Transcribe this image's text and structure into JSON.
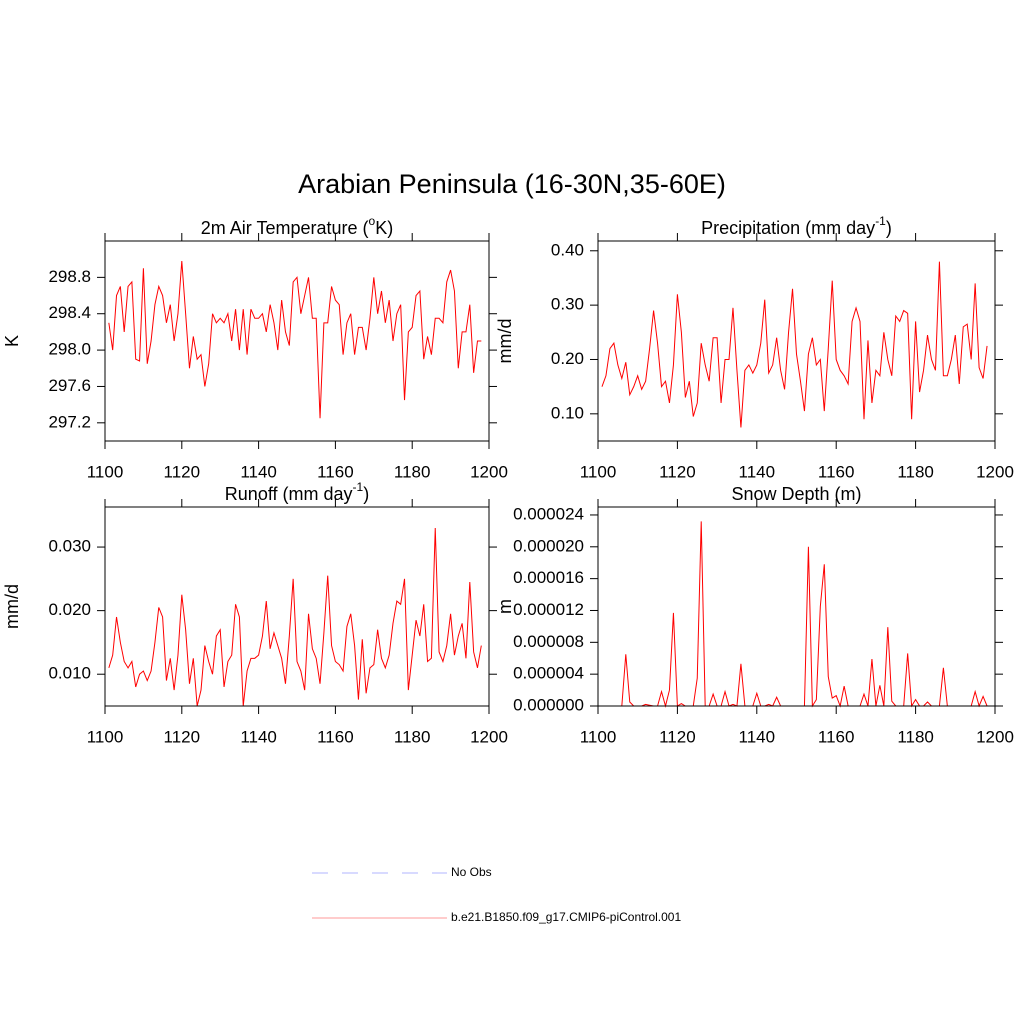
{
  "title": "Arabian Peninsula (16-30N,35-60E)",
  "chart_data": [
    {
      "type": "line",
      "title": [
        "2m Air Temperature (",
        "o",
        "K)"
      ],
      "ylabel": "K",
      "x": [
        1101,
        1102,
        1103,
        1104,
        1105,
        1106,
        1107,
        1108,
        1109,
        1110,
        1111,
        1112,
        1113,
        1114,
        1115,
        1116,
        1117,
        1118,
        1119,
        1120,
        1121,
        1122,
        1123,
        1124,
        1125,
        1126,
        1127,
        1128,
        1129,
        1130,
        1131,
        1132,
        1133,
        1134,
        1135,
        1136,
        1137,
        1138,
        1139,
        1140,
        1141,
        1142,
        1143,
        1144,
        1145,
        1146,
        1147,
        1148,
        1149,
        1150,
        1151,
        1152,
        1153,
        1154,
        1155,
        1156,
        1157,
        1158,
        1159,
        1160,
        1161,
        1162,
        1163,
        1164,
        1165,
        1166,
        1167,
        1168,
        1169,
        1170,
        1171,
        1172,
        1173,
        1174,
        1175,
        1176,
        1177,
        1178,
        1179,
        1180,
        1181,
        1182,
        1183,
        1184,
        1185,
        1186,
        1187,
        1188,
        1189,
        1190,
        1191,
        1192,
        1193,
        1194,
        1195,
        1196,
        1197,
        1198
      ],
      "series": [
        {
          "color": "#ff0000",
          "values": [
            298.3,
            298.0,
            298.6,
            298.7,
            298.2,
            298.7,
            298.75,
            297.9,
            297.88,
            298.9,
            297.85,
            298.1,
            298.5,
            298.7,
            298.6,
            298.3,
            298.5,
            298.1,
            298.4,
            298.98,
            298.4,
            297.8,
            298.15,
            297.9,
            297.95,
            297.6,
            297.85,
            298.4,
            298.3,
            298.35,
            298.3,
            298.4,
            298.1,
            298.45,
            298.0,
            298.45,
            297.95,
            298.45,
            298.35,
            298.35,
            298.4,
            298.2,
            298.5,
            298.3,
            298.0,
            298.55,
            298.2,
            298.05,
            298.75,
            298.8,
            298.4,
            298.6,
            298.8,
            298.35,
            298.35,
            297.25,
            298.3,
            298.3,
            298.7,
            298.55,
            298.5,
            297.95,
            298.3,
            298.4,
            297.95,
            298.25,
            298.25,
            298.0,
            298.35,
            298.8,
            298.4,
            298.65,
            298.3,
            298.55,
            298.1,
            298.4,
            298.5,
            297.45,
            298.2,
            298.25,
            298.6,
            298.65,
            297.9,
            298.15,
            297.95,
            298.35,
            298.35,
            298.3,
            298.75,
            298.88,
            298.65,
            297.8,
            298.2,
            298.2,
            298.5,
            297.75,
            298.1,
            298.1
          ]
        }
      ],
      "xlim": [
        1100,
        1200
      ],
      "xticks": [
        1100,
        1120,
        1140,
        1160,
        1180,
        1200
      ],
      "ylim": [
        297.0,
        299.2
      ],
      "yticks": [
        297.2,
        297.6,
        {
          "value": 298,
          "label": "298.0"
        },
        298.4,
        298.8
      ]
    },
    {
      "type": "line",
      "title": [
        "Precipitation (mm day",
        "-1",
        ")"
      ],
      "ylabel": "mm/d",
      "x": [
        1101,
        1102,
        1103,
        1104,
        1105,
        1106,
        1107,
        1108,
        1109,
        1110,
        1111,
        1112,
        1113,
        1114,
        1115,
        1116,
        1117,
        1118,
        1119,
        1120,
        1121,
        1122,
        1123,
        1124,
        1125,
        1126,
        1127,
        1128,
        1129,
        1130,
        1131,
        1132,
        1133,
        1134,
        1135,
        1136,
        1137,
        1138,
        1139,
        1140,
        1141,
        1142,
        1143,
        1144,
        1145,
        1146,
        1147,
        1148,
        1149,
        1150,
        1151,
        1152,
        1153,
        1154,
        1155,
        1156,
        1157,
        1158,
        1159,
        1160,
        1161,
        1162,
        1163,
        1164,
        1165,
        1166,
        1167,
        1168,
        1169,
        1170,
        1171,
        1172,
        1173,
        1174,
        1175,
        1176,
        1177,
        1178,
        1179,
        1180,
        1181,
        1182,
        1183,
        1184,
        1185,
        1186,
        1187,
        1188,
        1189,
        1190,
        1191,
        1192,
        1193,
        1194,
        1195,
        1196,
        1197,
        1198
      ],
      "series": [
        {
          "color": "#ff0000",
          "values": [
            0.15,
            0.17,
            0.22,
            0.23,
            0.19,
            0.165,
            0.195,
            0.135,
            0.15,
            0.17,
            0.145,
            0.16,
            0.22,
            0.29,
            0.23,
            0.15,
            0.16,
            0.12,
            0.19,
            0.32,
            0.25,
            0.13,
            0.16,
            0.095,
            0.12,
            0.23,
            0.19,
            0.16,
            0.24,
            0.24,
            0.12,
            0.2,
            0.2,
            0.295,
            0.18,
            0.075,
            0.18,
            0.19,
            0.175,
            0.19,
            0.23,
            0.31,
            0.175,
            0.19,
            0.24,
            0.18,
            0.145,
            0.25,
            0.33,
            0.21,
            0.16,
            0.105,
            0.21,
            0.24,
            0.19,
            0.2,
            0.105,
            0.22,
            0.345,
            0.2,
            0.18,
            0.17,
            0.155,
            0.27,
            0.295,
            0.27,
            0.09,
            0.235,
            0.12,
            0.18,
            0.17,
            0.25,
            0.2,
            0.17,
            0.28,
            0.27,
            0.29,
            0.285,
            0.09,
            0.27,
            0.14,
            0.18,
            0.245,
            0.2,
            0.18,
            0.38,
            0.17,
            0.17,
            0.2,
            0.245,
            0.155,
            0.26,
            0.265,
            0.2,
            0.34,
            0.185,
            0.165,
            0.225
          ]
        }
      ],
      "xlim": [
        1100,
        1200
      ],
      "xticks": [
        1100,
        1120,
        1140,
        1160,
        1180,
        1200
      ],
      "ylim": [
        0.05,
        0.418
      ],
      "yticks": [
        {
          "value": 0.1,
          "label": "0.10"
        },
        {
          "value": 0.2,
          "label": "0.20"
        },
        {
          "value": 0.3,
          "label": "0.30"
        },
        {
          "value": 0.4,
          "label": "0.40"
        }
      ]
    },
    {
      "type": "line",
      "title": [
        "Runoff (mm day",
        "-1",
        ")"
      ],
      "ylabel": "mm/d",
      "x": [
        1101,
        1102,
        1103,
        1104,
        1105,
        1106,
        1107,
        1108,
        1109,
        1110,
        1111,
        1112,
        1113,
        1114,
        1115,
        1116,
        1117,
        1118,
        1119,
        1120,
        1121,
        1122,
        1123,
        1124,
        1125,
        1126,
        1127,
        1128,
        1129,
        1130,
        1131,
        1132,
        1133,
        1134,
        1135,
        1136,
        1137,
        1138,
        1139,
        1140,
        1141,
        1142,
        1143,
        1144,
        1145,
        1146,
        1147,
        1148,
        1149,
        1150,
        1151,
        1152,
        1153,
        1154,
        1155,
        1156,
        1157,
        1158,
        1159,
        1160,
        1161,
        1162,
        1163,
        1164,
        1165,
        1166,
        1167,
        1168,
        1169,
        1170,
        1171,
        1172,
        1173,
        1174,
        1175,
        1176,
        1177,
        1178,
        1179,
        1180,
        1181,
        1182,
        1183,
        1184,
        1185,
        1186,
        1187,
        1188,
        1189,
        1190,
        1191,
        1192,
        1193,
        1194,
        1195,
        1196,
        1197,
        1198
      ],
      "series": [
        {
          "color": "#ff0000",
          "values": [
            0.011,
            0.013,
            0.019,
            0.015,
            0.012,
            0.011,
            0.012,
            0.008,
            0.01,
            0.0105,
            0.009,
            0.0105,
            0.015,
            0.0205,
            0.019,
            0.009,
            0.0125,
            0.0075,
            0.013,
            0.0225,
            0.017,
            0.0085,
            0.0125,
            0.005,
            0.0075,
            0.0145,
            0.012,
            0.01,
            0.016,
            0.017,
            0.008,
            0.012,
            0.013,
            0.021,
            0.019,
            0.005,
            0.0105,
            0.0125,
            0.0125,
            0.013,
            0.016,
            0.0215,
            0.014,
            0.0165,
            0.0145,
            0.0125,
            0.0085,
            0.016,
            0.025,
            0.012,
            0.0105,
            0.0075,
            0.0195,
            0.014,
            0.0125,
            0.0085,
            0.0165,
            0.0255,
            0.0145,
            0.012,
            0.0115,
            0.0105,
            0.0175,
            0.0195,
            0.0145,
            0.006,
            0.0155,
            0.007,
            0.011,
            0.0115,
            0.017,
            0.0125,
            0.011,
            0.013,
            0.018,
            0.0215,
            0.021,
            0.025,
            0.0075,
            0.013,
            0.0185,
            0.016,
            0.021,
            0.012,
            0.0125,
            0.033,
            0.0135,
            0.012,
            0.0145,
            0.0195,
            0.013,
            0.016,
            0.018,
            0.0125,
            0.0245,
            0.0135,
            0.011,
            0.0145
          ]
        }
      ],
      "xlim": [
        1100,
        1200
      ],
      "xticks": [
        1100,
        1120,
        1140,
        1160,
        1180,
        1200
      ],
      "ylim": [
        0.005,
        0.0363
      ],
      "yticks": [
        {
          "value": 0.01,
          "label": "0.010"
        },
        {
          "value": 0.02,
          "label": "0.020"
        },
        {
          "value": 0.03,
          "label": "0.030"
        }
      ]
    },
    {
      "type": "line",
      "title": "Snow Depth (m)",
      "ylabel": "m",
      "x": [
        1101,
        1102,
        1103,
        1104,
        1105,
        1106,
        1107,
        1108,
        1109,
        1110,
        1111,
        1112,
        1113,
        1114,
        1115,
        1116,
        1117,
        1118,
        1119,
        1120,
        1121,
        1122,
        1123,
        1124,
        1125,
        1126,
        1127,
        1128,
        1129,
        1130,
        1131,
        1132,
        1133,
        1134,
        1135,
        1136,
        1137,
        1138,
        1139,
        1140,
        1141,
        1142,
        1143,
        1144,
        1145,
        1146,
        1147,
        1148,
        1149,
        1150,
        1151,
        1152,
        1153,
        1154,
        1155,
        1156,
        1157,
        1158,
        1159,
        1160,
        1161,
        1162,
        1163,
        1164,
        1165,
        1166,
        1167,
        1168,
        1169,
        1170,
        1171,
        1172,
        1173,
        1174,
        1175,
        1176,
        1177,
        1178,
        1179,
        1180,
        1181,
        1182,
        1183,
        1184,
        1185,
        1186,
        1187,
        1188,
        1189,
        1190,
        1191,
        1192,
        1193,
        1194,
        1195,
        1196,
        1197,
        1198
      ],
      "series": [
        {
          "color": "#ff0000",
          "values": [
            0,
            0,
            0,
            0,
            0,
            0,
            6.5e-06,
            5e-07,
            0,
            0,
            0,
            2e-07,
            1e-07,
            0,
            0,
            1.8e-06,
            0,
            2e-06,
            1.17e-05,
            0,
            3e-07,
            0,
            0,
            0,
            3.5e-06,
            2.32e-05,
            0,
            0,
            1.5e-06,
            0,
            0,
            1.8e-06,
            0,
            2e-07,
            0,
            5.3e-06,
            0,
            0,
            0,
            1.6e-06,
            0,
            0,
            2e-07,
            0,
            1.1e-06,
            0,
            0,
            0,
            0,
            0,
            0,
            0,
            2e-05,
            0,
            8e-07,
            1.25e-05,
            1.78e-05,
            3.7e-06,
            1e-06,
            1.3e-06,
            0,
            2.5e-06,
            0,
            0,
            0,
            0,
            1.5e-06,
            0,
            5.9e-06,
            0,
            2.6e-06,
            0,
            9.9e-06,
            6e-07,
            0,
            0,
            0,
            6.6e-06,
            0,
            8e-07,
            0,
            0,
            5e-07,
            0,
            0,
            0,
            4.8e-06,
            0,
            0,
            0,
            0,
            0,
            0,
            0,
            1.8e-06,
            0,
            1.2e-06,
            0
          ]
        }
      ],
      "xlim": [
        1100,
        1200
      ],
      "xticks": [
        1100,
        1120,
        1140,
        1160,
        1180,
        1200
      ],
      "ylim": [
        0,
        2.5e-05
      ],
      "yticks": [
        {
          "value": 0,
          "label": "0.000000"
        },
        {
          "value": 4e-06,
          "label": "0.000004"
        },
        {
          "value": 8e-06,
          "label": "0.000008"
        },
        {
          "value": 1.2e-05,
          "label": "0.000012"
        },
        {
          "value": 1.6e-05,
          "label": "0.000016"
        },
        {
          "value": 2e-05,
          "label": "0.000020"
        },
        {
          "value": 2.4e-05,
          "label": "0.000024"
        }
      ]
    }
  ],
  "legend": [
    {
      "name": "No Obs",
      "color": "#b0b4ff",
      "dash": true
    },
    {
      "name": "b.e21.B1850.f09_g17.CMIP6-piControl.001",
      "color": "#ff9a9a",
      "dash": false
    }
  ]
}
